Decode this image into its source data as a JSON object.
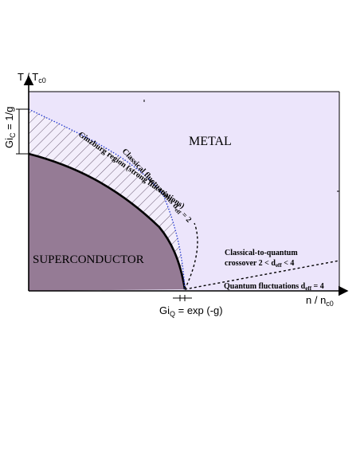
{
  "colors": {
    "metal_fill": "#ece5fb",
    "superconductor_fill": "#957b95",
    "ginzburg_fill": "#f3eefb",
    "hatch": "#6a5a73",
    "classical_boundary": "#2a3fd1",
    "axis": "#000000"
  },
  "axes": {
    "y_label_main": "T / T",
    "y_label_sub": "c0",
    "x_label_main": "n / n",
    "x_label_sub": "c0"
  },
  "regions": {
    "metal": "METAL",
    "superconductor": "SUPERCONDUCTOR",
    "ginzburg": "Ginzburg region (strong fluctuations)"
  },
  "annotations": {
    "classical_main": "Classical fluctuations d",
    "classical_sub": "eff",
    "classical_tail": " = 2",
    "crossover_line1": "Classical-to-quantum",
    "crossover_line2_a": "crossover 2 < d",
    "crossover_line2_sub": "eff",
    "crossover_line2_b": " < 4",
    "quantum_main": "Quantum fluctuations d",
    "quantum_sub": "eff",
    "quantum_tail": " = 4"
  },
  "gi_labels": {
    "gic_main": "Gi",
    "gic_sub": "C",
    "gic_tail": " = 1/g",
    "giq_main": "Gi",
    "giq_sub": "Q",
    "giq_tail": " = exp (-g)"
  }
}
